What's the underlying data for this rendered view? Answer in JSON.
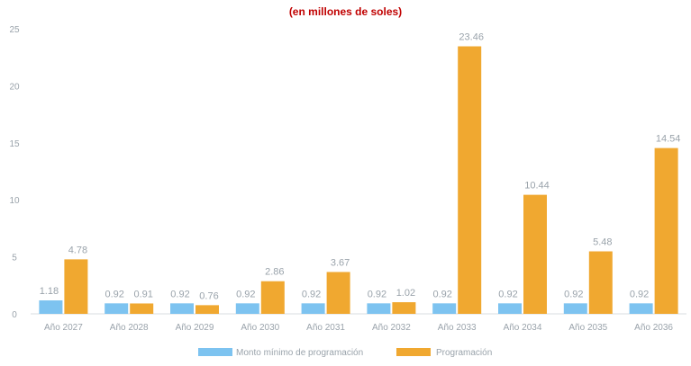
{
  "chart_data": {
    "type": "bar",
    "title": "(en millones de soles)",
    "xlabel": "",
    "ylabel": "",
    "ylim": [
      0,
      25
    ],
    "yticks": [
      0,
      5,
      10,
      15,
      20,
      25
    ],
    "grid": false,
    "legend_position": "bottom",
    "categories": [
      "Año 2027",
      "Año 2028",
      "Año 2029",
      "Año 2030",
      "Año 2031",
      "Año 2032",
      "Año 2033",
      "Año 2034",
      "Año 2035",
      "Año 2036"
    ],
    "series": [
      {
        "name": "Monto mínimo de programación",
        "color": "#7dc3f0",
        "values": [
          1.18,
          0.92,
          0.92,
          0.92,
          0.92,
          0.92,
          0.92,
          0.92,
          0.92,
          0.92
        ],
        "labels": [
          "1.18",
          "0.92",
          "0.92",
          "0.92",
          "0.92",
          "0.92",
          "0.92",
          "0.92",
          "0.92",
          "0.92"
        ]
      },
      {
        "name": "Programación",
        "color": "#f0a830",
        "values": [
          4.78,
          0.91,
          0.76,
          2.86,
          3.67,
          1.02,
          23.46,
          10.44,
          5.48,
          14.54
        ],
        "labels": [
          "4.78",
          "0.91",
          "0.76",
          "2.86",
          "3.67",
          "1.02",
          "23.46",
          "10.44",
          "5.48",
          "14.54"
        ]
      }
    ]
  }
}
